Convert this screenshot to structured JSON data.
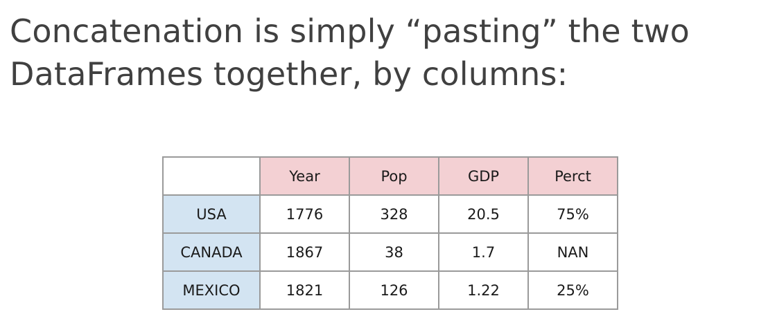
{
  "slide": {
    "title_lines": [
      "Concatenation is simply “pasting” the two",
      "DataFrames together, by columns:"
    ]
  },
  "table": {
    "corner": "",
    "columns": [
      "Year",
      "Pop",
      "GDP",
      "Perct"
    ],
    "rows": [
      {
        "label": "USA",
        "values": [
          "1776",
          "328",
          "20.5",
          "75%"
        ]
      },
      {
        "label": "CANADA",
        "values": [
          "1867",
          "38",
          "1.7",
          "NAN"
        ]
      },
      {
        "label": "MEXICO",
        "values": [
          "1821",
          "126",
          "1.22",
          "25%"
        ]
      }
    ],
    "colors": {
      "column_header_bg": "#f3d0d3",
      "row_header_bg": "#d3e4f2",
      "border": "#9a9a9a"
    }
  }
}
